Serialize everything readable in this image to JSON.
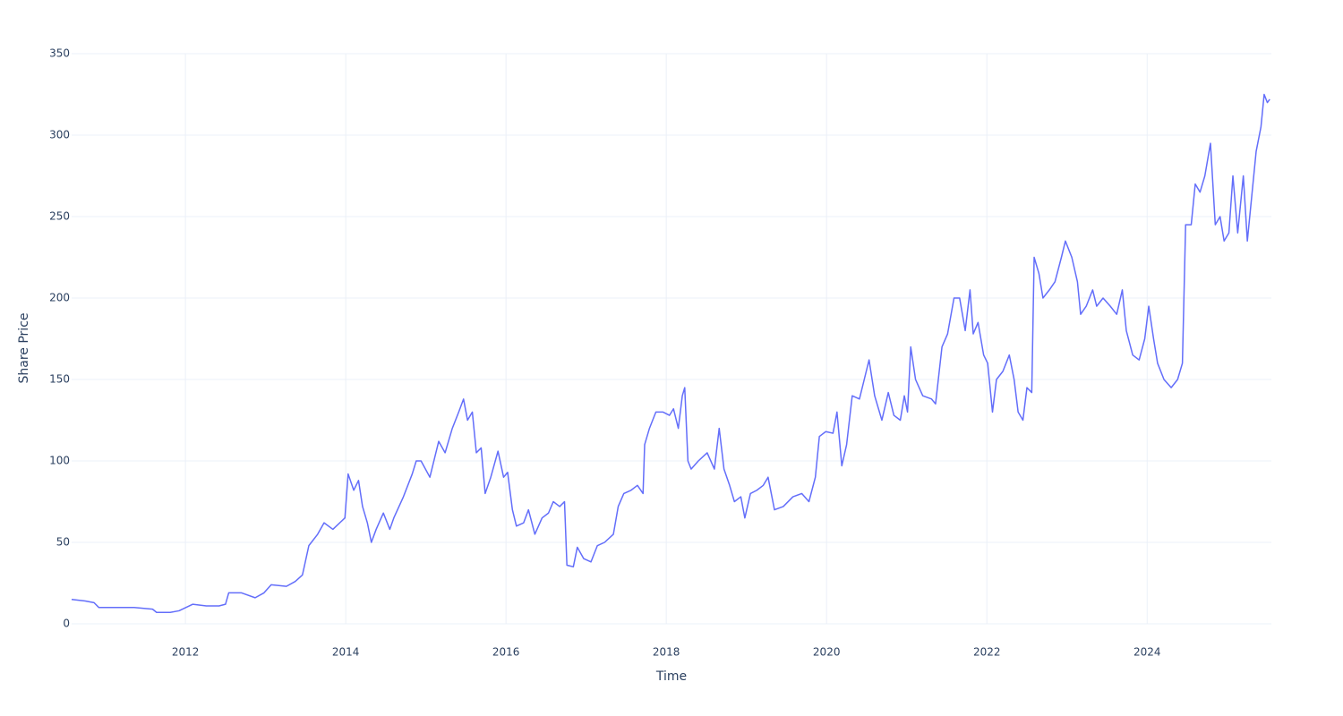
{
  "chart_data": {
    "type": "line",
    "x_label": "Time",
    "y_label": "Share Price",
    "x": [
      2010.58,
      2010.75,
      2010.86,
      2010.92,
      2011.14,
      2011.36,
      2011.59,
      2011.64,
      2011.81,
      2011.92,
      2012.09,
      2012.26,
      2012.42,
      2012.5,
      2012.54,
      2012.7,
      2012.87,
      2012.98,
      2013.07,
      2013.26,
      2013.37,
      2013.46,
      2013.54,
      2013.65,
      2013.73,
      2013.84,
      2013.99,
      2014.03,
      2014.1,
      2014.16,
      2014.21,
      2014.27,
      2014.32,
      2014.38,
      2014.47,
      2014.55,
      2014.6,
      2014.72,
      2014.83,
      2014.88,
      2014.94,
      2015.05,
      2015.16,
      2015.24,
      2015.33,
      2015.41,
      2015.47,
      2015.52,
      2015.58,
      2015.63,
      2015.69,
      2015.74,
      2015.81,
      2015.9,
      2015.97,
      2016.02,
      2016.08,
      2016.13,
      2016.22,
      2016.28,
      2016.36,
      2016.45,
      2016.53,
      2016.59,
      2016.67,
      2016.73,
      2016.76,
      2016.84,
      2016.89,
      2016.97,
      2017.06,
      2017.14,
      2017.23,
      2017.34,
      2017.4,
      2017.47,
      2017.56,
      2017.64,
      2017.71,
      2017.73,
      2017.79,
      2017.87,
      2017.96,
      2018.04,
      2018.09,
      2018.15,
      2018.2,
      2018.23,
      2018.27,
      2018.31,
      2018.4,
      2018.51,
      2018.6,
      2018.66,
      2018.72,
      2018.79,
      2018.85,
      2018.93,
      2018.98,
      2019.05,
      2019.13,
      2019.21,
      2019.27,
      2019.35,
      2019.46,
      2019.58,
      2019.69,
      2019.78,
      2019.86,
      2019.91,
      2019.99,
      2020.08,
      2020.13,
      2020.19,
      2020.25,
      2020.32,
      2020.41,
      2020.47,
      2020.53,
      2020.6,
      2020.69,
      2020.77,
      2020.84,
      2020.92,
      2020.97,
      2021.01,
      2021.05,
      2021.11,
      2021.2,
      2021.31,
      2021.36,
      2021.44,
      2021.51,
      2021.59,
      2021.66,
      2021.73,
      2021.79,
      2021.83,
      2021.89,
      2021.96,
      2022.01,
      2022.07,
      2022.12,
      2022.2,
      2022.28,
      2022.34,
      2022.39,
      2022.45,
      2022.5,
      2022.56,
      2022.59,
      2022.65,
      2022.7,
      2022.78,
      2022.85,
      2022.93,
      2022.98,
      2023.06,
      2023.13,
      2023.17,
      2023.24,
      2023.32,
      2023.37,
      2023.45,
      2023.54,
      2023.62,
      2023.69,
      2023.74,
      2023.82,
      2023.9,
      2023.97,
      2024.02,
      2024.08,
      2024.13,
      2024.21,
      2024.3,
      2024.38,
      2024.44,
      2024.48,
      2024.55,
      2024.6,
      2024.66,
      2024.72,
      2024.79,
      2024.85,
      2024.91,
      2024.96,
      2025.02,
      2025.07,
      2025.13,
      2025.2,
      2025.25,
      2025.31,
      2025.36,
      2025.42,
      2025.46,
      2025.5,
      2025.53
    ],
    "series": [
      {
        "color": "#636efa",
        "values": [
          15,
          14,
          13,
          10,
          10,
          10,
          9,
          7,
          7,
          8,
          12,
          11,
          11,
          12,
          19,
          19,
          16,
          19,
          24,
          23,
          26,
          30,
          48,
          55,
          62,
          58,
          65,
          92,
          82,
          88,
          72,
          62,
          50,
          58,
          68,
          58,
          65,
          78,
          92,
          100,
          100,
          90,
          112,
          105,
          120,
          130,
          138,
          125,
          130,
          105,
          108,
          80,
          90,
          106,
          90,
          93,
          70,
          60,
          62,
          70,
          55,
          65,
          68,
          75,
          72,
          75,
          36,
          35,
          47,
          40,
          38,
          48,
          50,
          55,
          72,
          80,
          82,
          85,
          80,
          110,
          120,
          130,
          130,
          128,
          132,
          120,
          140,
          145,
          100,
          95,
          100,
          105,
          95,
          120,
          95,
          85,
          75,
          78,
          65,
          80,
          82,
          85,
          90,
          70,
          72,
          78,
          80,
          75,
          90,
          115,
          118,
          117,
          130,
          97,
          110,
          140,
          138,
          150,
          162,
          140,
          125,
          142,
          128,
          125,
          140,
          130,
          170,
          150,
          140,
          138,
          135,
          170,
          178,
          200,
          200,
          180,
          205,
          178,
          185,
          165,
          160,
          130,
          150,
          155,
          165,
          150,
          130,
          125,
          145,
          142,
          225,
          215,
          200,
          205,
          210,
          225,
          235,
          225,
          210,
          190,
          195,
          205,
          195,
          200,
          195,
          190,
          205,
          180,
          165,
          162,
          175,
          195,
          175,
          160,
          150,
          145,
          150,
          160,
          245,
          245,
          270,
          265,
          275,
          295,
          245,
          250,
          235,
          240,
          275,
          240,
          275,
          235,
          265,
          290,
          305,
          325,
          320,
          322
        ]
      }
    ],
    "xlim": [
      2010.58,
      2025.55
    ],
    "xticks": [
      2012,
      2014,
      2016,
      2018,
      2020,
      2022,
      2024
    ],
    "ylim": [
      0,
      350
    ],
    "yticks": [
      0,
      50,
      100,
      150,
      200,
      250,
      300,
      350
    ],
    "grid": true
  }
}
